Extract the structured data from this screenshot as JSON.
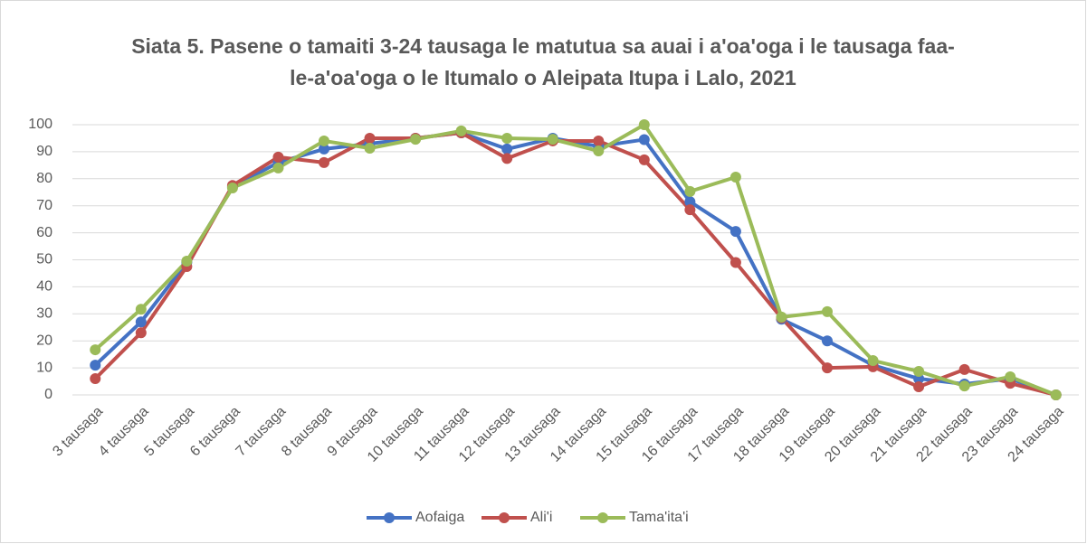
{
  "chart_data": {
    "type": "line",
    "title": "Siata 5. Pasene o tamaiti 3-24 tausaga le matutua sa auai i a'oa'oga i le tausaga faa-le-a'oa'oga o le Itumalo o Aleipata Itupa i Lalo, 2021",
    "categories": [
      "3 tausaga",
      "4 tausaga",
      "5 tausaga",
      "6 tausaga",
      "7 tausaga",
      "8 tausaga",
      "9 tausaga",
      "10 tausaga",
      "11 tausaga",
      "12 tausaga",
      "13 tausaga",
      "14 tausaga",
      "15 tausaga",
      "16 tausaga",
      "17 tausaga",
      "18 tausaga",
      "19 tausaga",
      "20 tausaga",
      "21 tausaga",
      "22 tausaga",
      "23 tausaga",
      "24 tausaga"
    ],
    "series": [
      {
        "name": "Aofaiga",
        "color": "#4472c4",
        "values": [
          11,
          27,
          49,
          77,
          86,
          91,
          93,
          95,
          97,
          91,
          95,
          92,
          94.5,
          71.5,
          60.5,
          28,
          20,
          11,
          6,
          4,
          6,
          0
        ]
      },
      {
        "name": "Ali'i",
        "color": "#c0504d",
        "values": [
          6,
          23,
          47.5,
          77.5,
          88,
          86,
          95,
          95,
          97,
          87.5,
          94,
          94,
          87,
          68.5,
          49,
          28.5,
          10,
          10.4,
          3,
          9.4,
          4.3,
          0
        ]
      },
      {
        "name": "Tama'ita'i",
        "color": "#9bbb59",
        "values": [
          16.7,
          31.7,
          49.5,
          76.6,
          84,
          94,
          91.3,
          94.6,
          97.7,
          95,
          94.6,
          90.3,
          100,
          75.3,
          80.6,
          28.8,
          30.8,
          12.7,
          8.7,
          3.3,
          6.7,
          0
        ]
      }
    ],
    "ylim": [
      0,
      100
    ],
    "yticks": [
      0,
      10,
      20,
      30,
      40,
      50,
      60,
      70,
      80,
      90,
      100
    ],
    "grid": true,
    "legend": "bottom"
  }
}
